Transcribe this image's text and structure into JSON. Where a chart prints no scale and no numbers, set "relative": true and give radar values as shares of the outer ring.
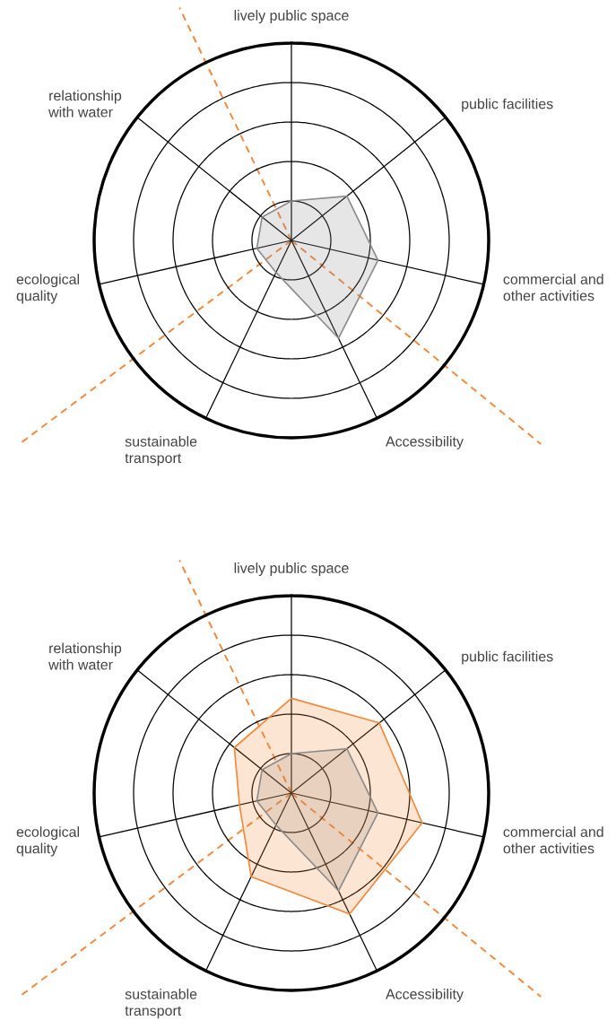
{
  "chart_data": [
    {
      "type": "radar",
      "relative": true,
      "grid": true,
      "categories": [
        "lively public space",
        "public facilities",
        "commercial and\nother activities",
        "Accessibility",
        "sustainable\ntransport",
        "ecological\nquality",
        "relationship\nwith water"
      ],
      "series": [
        {
          "color": "#8c8c8c",
          "values": [
            0.2,
            0.36,
            0.45,
            0.55,
            0.18,
            0.18,
            0.19
          ]
        }
      ]
    },
    {
      "type": "radar",
      "relative": true,
      "grid": true,
      "categories": [
        "lively public space",
        "public facilities",
        "commercial and\nother activities",
        "Accessibility",
        "sustainable\ntransport",
        "ecological\nquality",
        "relationship\nwith water"
      ],
      "series": [
        {
          "color": "#8c8c8c",
          "values": [
            0.2,
            0.36,
            0.45,
            0.55,
            0.18,
            0.18,
            0.19
          ]
        },
        {
          "color": "#f4883a",
          "values": [
            0.48,
            0.57,
            0.68,
            0.68,
            0.47,
            0.27,
            0.37
          ]
        }
      ]
    }
  ]
}
